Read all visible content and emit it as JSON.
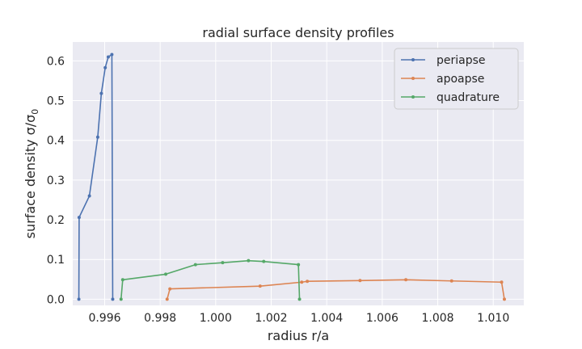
{
  "chart_data": {
    "type": "line",
    "title": "radial surface density profiles",
    "xlabel": "radius r/a",
    "ylabel": "surface density σ/σ",
    "ylabel_subscript": "0",
    "xlim": [
      0.99485,
      1.0111
    ],
    "ylim": [
      -0.0155,
      0.6475
    ],
    "xticks": [
      0.996,
      0.998,
      1.0,
      1.002,
      1.004,
      1.006,
      1.008,
      1.01
    ],
    "xtick_labels": [
      "0.996",
      "0.998",
      "1.000",
      "1.002",
      "1.004",
      "1.006",
      "1.008",
      "1.010"
    ],
    "yticks": [
      0.0,
      0.1,
      0.2,
      0.3,
      0.4,
      0.5,
      0.6
    ],
    "ytick_labels": [
      "0.0",
      "0.1",
      "0.2",
      "0.3",
      "0.4",
      "0.5",
      "0.6"
    ],
    "grid": true,
    "legend_position": "top-right",
    "series": [
      {
        "name": "periapse",
        "color": "#4c72b0",
        "points": [
          [
            0.99507,
            0.0
          ],
          [
            0.99508,
            0.206
          ],
          [
            0.99545,
            0.26
          ],
          [
            0.99575,
            0.408
          ],
          [
            0.99588,
            0.518
          ],
          [
            0.99602,
            0.583
          ],
          [
            0.99613,
            0.61
          ],
          [
            0.99626,
            0.616
          ],
          [
            0.99629,
            0.0
          ]
        ]
      },
      {
        "name": "apoapse",
        "color": "#dd8452",
        "points": [
          [
            0.99825,
            0.0
          ],
          [
            0.99835,
            0.026
          ],
          [
            1.0016,
            0.033
          ],
          [
            1.0031,
            0.043
          ],
          [
            1.0033,
            0.045
          ],
          [
            1.0052,
            0.047
          ],
          [
            1.00685,
            0.049
          ],
          [
            1.0085,
            0.046
          ],
          [
            1.0103,
            0.043
          ],
          [
            1.0104,
            0.0
          ]
        ]
      },
      {
        "name": "quadrature",
        "color": "#55a868",
        "points": [
          [
            0.99659,
            0.0
          ],
          [
            0.99665,
            0.049
          ],
          [
            0.9982,
            0.063
          ],
          [
            0.99927,
            0.087
          ],
          [
            1.00025,
            0.092
          ],
          [
            1.00118,
            0.097
          ],
          [
            1.00173,
            0.095
          ],
          [
            1.00298,
            0.087
          ],
          [
            1.00302,
            0.0
          ]
        ]
      }
    ]
  }
}
